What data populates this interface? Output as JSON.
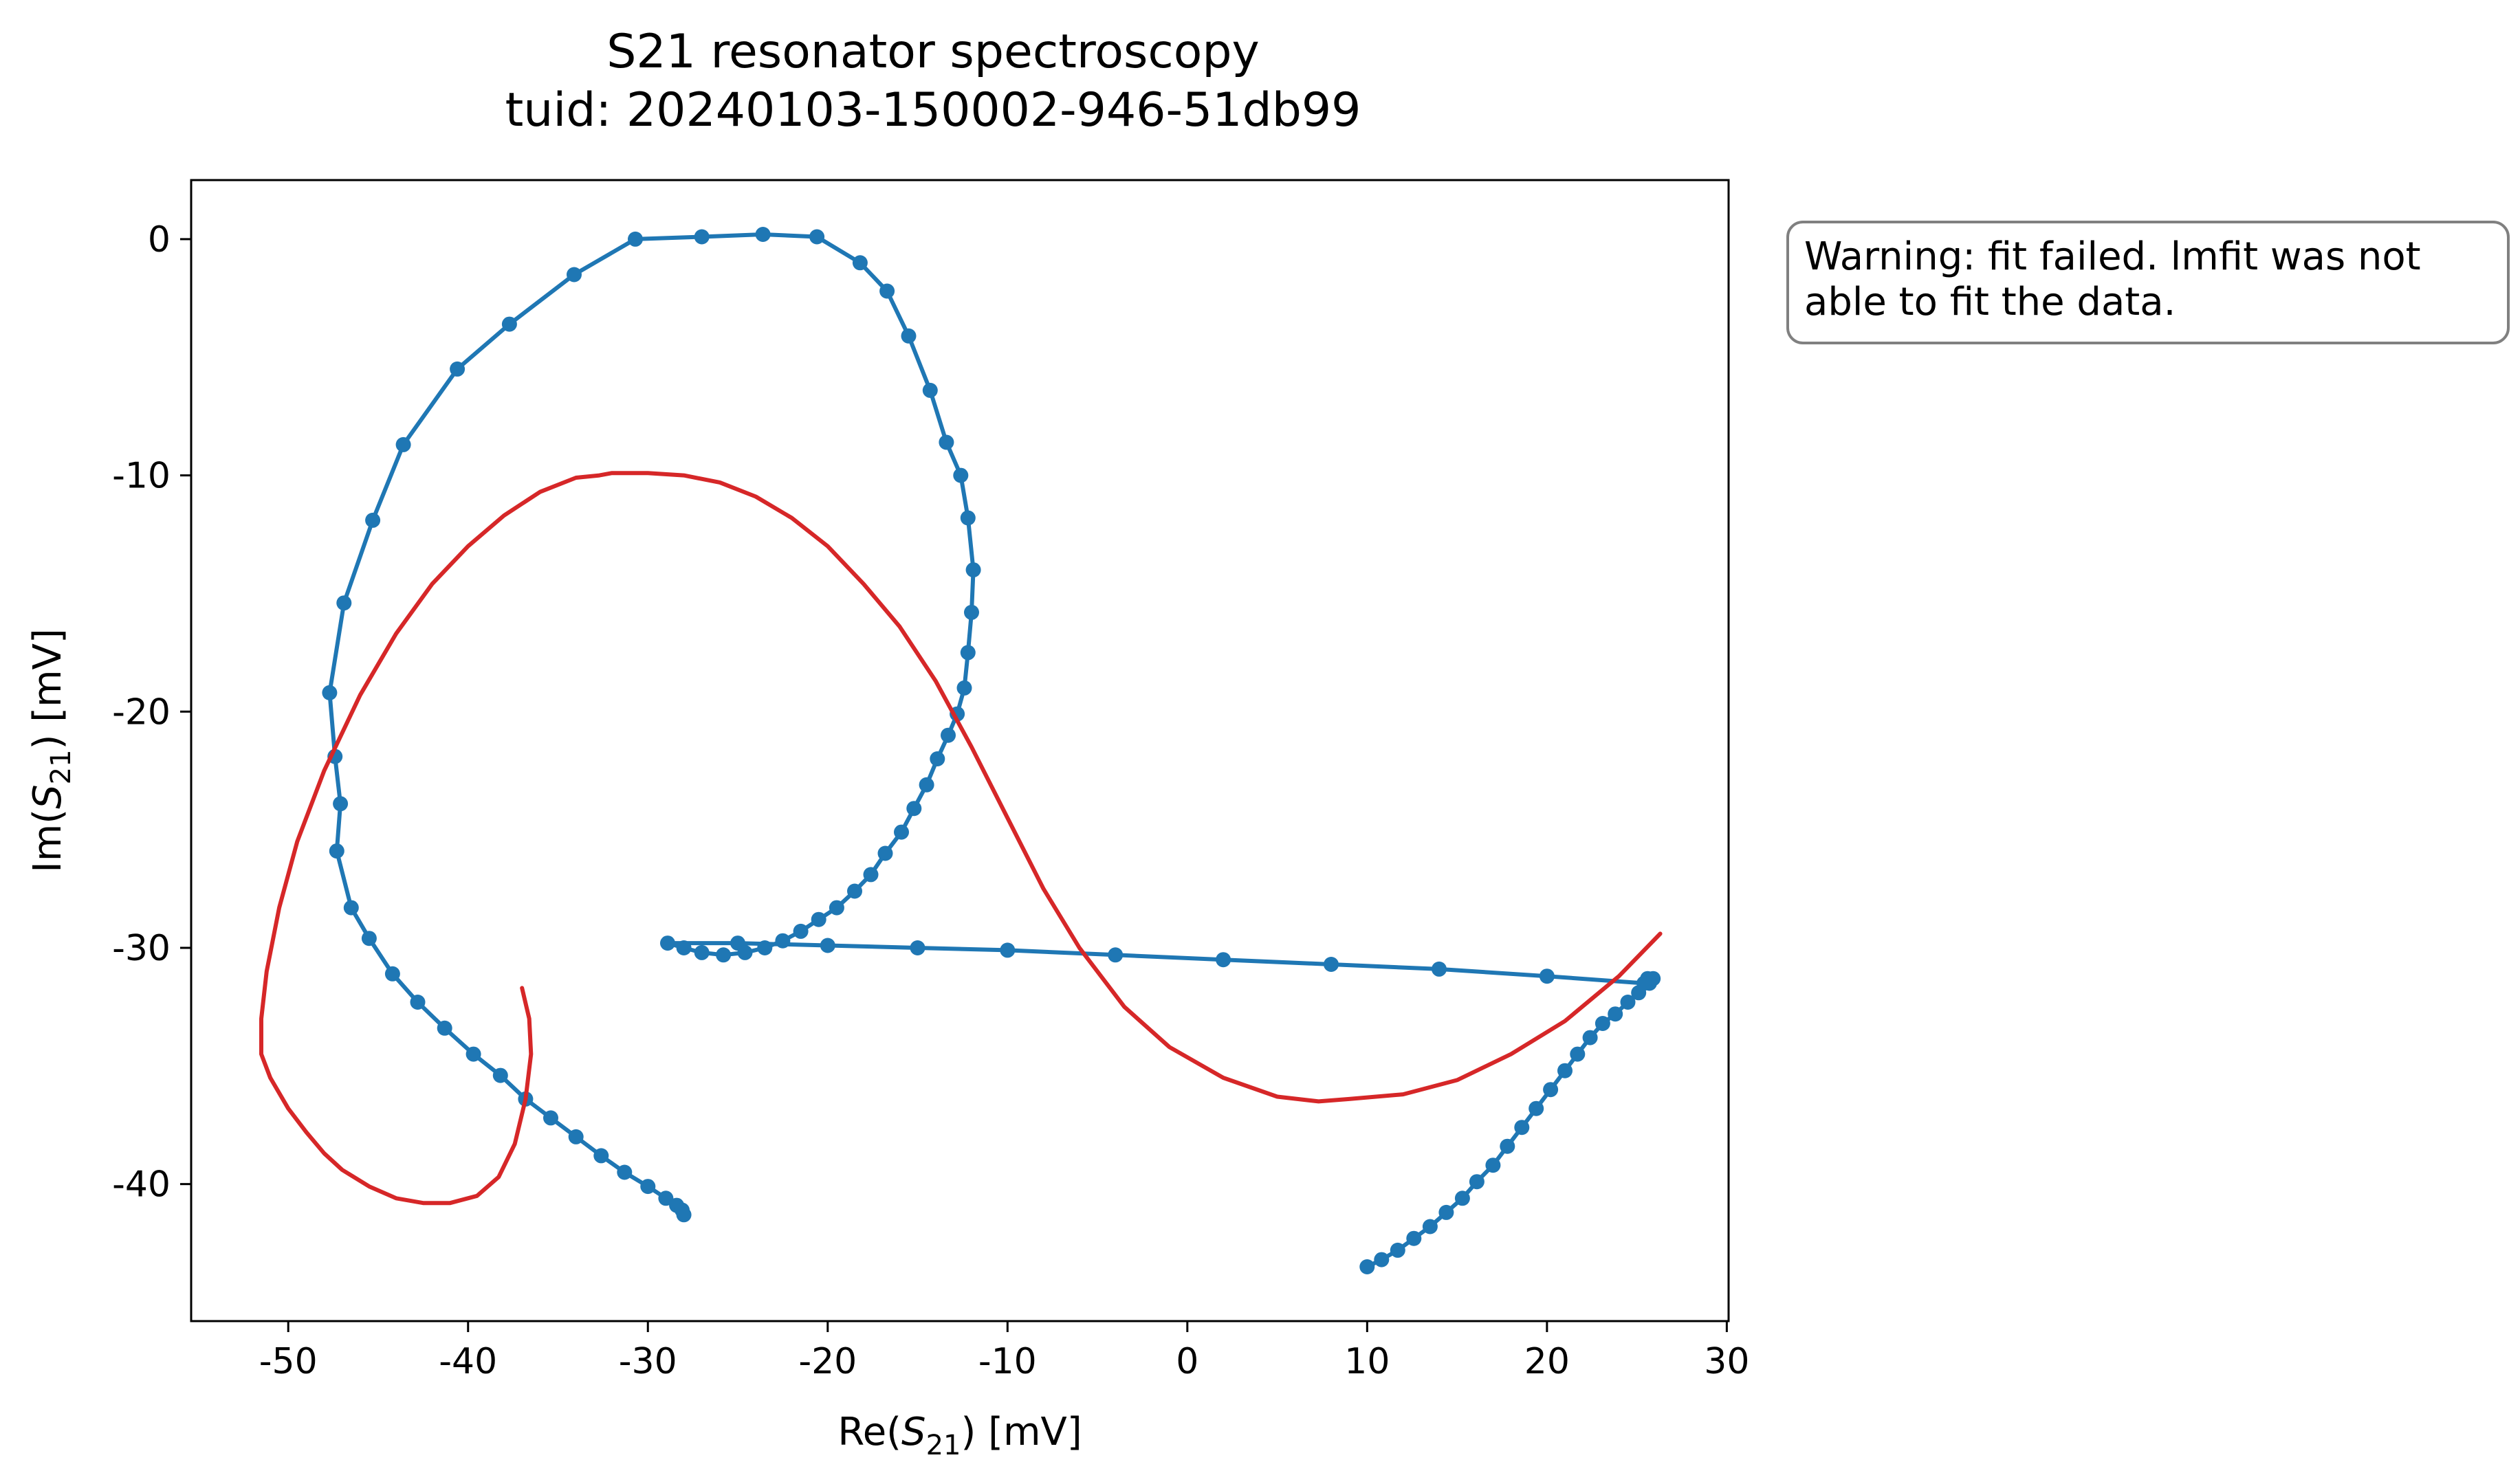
{
  "colors": {
    "data": "#1f77b4",
    "fit": "#d62728",
    "axes": "#000000",
    "background": "#ffffff",
    "warning_border": "#808080"
  },
  "chart_data": {
    "type": "scatter",
    "title": "S21 resonator spectroscopy",
    "subtitle": "tuid: 20240103-150002-946-51db99",
    "xlabel": {
      "prefix": "Re(",
      "symbol": "S",
      "subscript": "21",
      "suffix": ") [mV]"
    },
    "ylabel": {
      "prefix": "Im(",
      "symbol": "S",
      "subscript": "21",
      "suffix": ") [mV]"
    },
    "xlim": [
      -55.4,
      30.1
    ],
    "ylim": [
      -45.8,
      2.5
    ],
    "xticks": [
      -50,
      -40,
      -30,
      -20,
      -10,
      0,
      10,
      20,
      30
    ],
    "yticks": [
      0,
      -10,
      -20,
      -30,
      -40
    ],
    "grid": false,
    "legend": "none",
    "series": [
      {
        "style": "line-with-markers",
        "color": "#1f77b4",
        "x": [
          10.0,
          10.8,
          11.7,
          12.6,
          13.5,
          14.4,
          15.3,
          16.1,
          17.0,
          17.8,
          18.6,
          19.4,
          20.2,
          21.0,
          21.7,
          22.4,
          23.1,
          23.8,
          24.5,
          25.1,
          25.7,
          25.9,
          25.6,
          25.4,
          20.0,
          14.0,
          8.0,
          2.0,
          -4.0,
          -10.0,
          -15.0,
          -20.0,
          -25.0,
          -28.9,
          -28.0,
          -27.0,
          -25.8,
          -24.6,
          -23.5,
          -22.5,
          -21.5,
          -20.5,
          -19.5,
          -18.5,
          -17.6,
          -16.8,
          -15.9,
          -15.2,
          -14.5,
          -13.9,
          -13.3,
          -12.8,
          -12.4,
          -12.2,
          -12.0,
          -11.9,
          -12.2,
          -12.6,
          -13.4,
          -14.3,
          -15.5,
          -16.7,
          -18.2,
          -20.6,
          -23.6,
          -27.0,
          -30.7,
          -34.1,
          -37.7,
          -40.6,
          -43.6,
          -45.3,
          -46.9,
          -47.7,
          -47.4,
          -47.1,
          -47.3,
          -46.5,
          -45.5,
          -44.2,
          -42.8,
          -41.3,
          -39.7,
          -38.2,
          -36.8,
          -35.4,
          -34.0,
          -32.6,
          -31.3,
          -30.0,
          -29.0,
          -28.4,
          -28.1,
          -28.0
        ],
        "y": [
          -43.5,
          -43.2,
          -42.8,
          -42.3,
          -41.8,
          -41.2,
          -40.6,
          -39.9,
          -39.2,
          -38.4,
          -37.6,
          -36.8,
          -36.0,
          -35.2,
          -34.5,
          -33.8,
          -33.2,
          -32.8,
          -32.3,
          -31.9,
          -31.5,
          -31.3,
          -31.3,
          -31.5,
          -31.2,
          -30.9,
          -30.7,
          -30.5,
          -30.3,
          -30.1,
          -30.0,
          -29.9,
          -29.8,
          -29.8,
          -30.0,
          -30.2,
          -30.3,
          -30.2,
          -30.0,
          -29.7,
          -29.3,
          -28.8,
          -28.3,
          -27.6,
          -26.9,
          -26.0,
          -25.1,
          -24.1,
          -23.1,
          -22.0,
          -21.0,
          -20.1,
          -19.0,
          -17.5,
          -15.8,
          -14.0,
          -11.8,
          -10.0,
          -8.6,
          -6.4,
          -4.1,
          -2.2,
          -1.0,
          0.1,
          0.2,
          0.1,
          0.0,
          -1.5,
          -3.6,
          -5.5,
          -8.7,
          -11.9,
          -15.4,
          -19.2,
          -21.9,
          -23.9,
          -25.9,
          -28.3,
          -29.6,
          -31.1,
          -32.3,
          -33.4,
          -34.5,
          -35.4,
          -36.4,
          -37.2,
          -38.0,
          -38.8,
          -39.5,
          -40.1,
          -40.6,
          -40.9,
          -41.1,
          -41.3
        ]
      },
      {
        "style": "line",
        "color": "#d62728",
        "x": [
          26.3,
          24.0,
          21.0,
          18.0,
          15.0,
          12.0,
          9.0,
          7.3,
          5.0,
          2.0,
          -1.0,
          -3.5,
          -6.0,
          -8.0,
          -10.0,
          -12.0,
          -14.0,
          -16.0,
          -18.0,
          -20.0,
          -22.0,
          -24.0,
          -26.0,
          -28.0,
          -30.0,
          -32.0,
          -32.7,
          -34.0,
          -36.0,
          -38.0,
          -40.0,
          -42.0,
          -44.0,
          -46.0,
          -48.0,
          -49.5,
          -50.5,
          -51.2,
          -51.5,
          -51.5,
          -51.0,
          -50.0,
          -49.0,
          -48.0,
          -47.0,
          -45.5,
          -44.0,
          -42.5,
          -41.0,
          -39.5,
          -38.3,
          -37.4,
          -36.8,
          -36.5,
          -36.6,
          -37.0
        ],
        "y": [
          -29.4,
          -31.2,
          -33.1,
          -34.5,
          -35.6,
          -36.2,
          -36.4,
          -36.5,
          -36.3,
          -35.5,
          -34.2,
          -32.5,
          -30.0,
          -27.5,
          -24.5,
          -21.5,
          -18.7,
          -16.4,
          -14.6,
          -13.0,
          -11.8,
          -10.9,
          -10.3,
          -10.0,
          -9.9,
          -9.9,
          -10.0,
          -10.1,
          -10.7,
          -11.7,
          -13.0,
          -14.6,
          -16.7,
          -19.3,
          -22.5,
          -25.5,
          -28.3,
          -31.0,
          -33.0,
          -34.5,
          -35.5,
          -36.8,
          -37.8,
          -38.7,
          -39.4,
          -40.1,
          -40.6,
          -40.8,
          -40.8,
          -40.5,
          -39.7,
          -38.3,
          -36.4,
          -34.5,
          -33.0,
          -31.7
        ]
      }
    ],
    "annotations": [
      {
        "text": "Warning: fit failed. lmfit was not\nable to fit the data."
      }
    ]
  },
  "warning": {
    "line1": "Warning: fit failed. lmfit was not",
    "line2": "able to fit the data."
  }
}
